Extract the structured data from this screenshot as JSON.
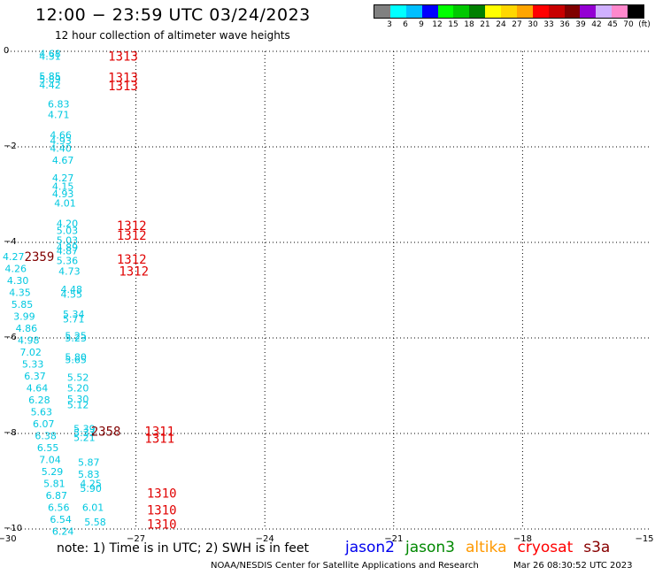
{
  "header": {
    "title": "12:00 − 23:59 UTC 03/24/2023",
    "subtitle": "12 hour collection of altimeter wave heights"
  },
  "legend": {
    "colors": [
      "#808080",
      "#00ffff",
      "#00bfff",
      "#0000ff",
      "#00ff00",
      "#00c800",
      "#008000",
      "#ffff00",
      "#ffd700",
      "#ffa500",
      "#ff0000",
      "#c80000",
      "#800000",
      "#9400d3",
      "#d0b0ff",
      "#ff88cc",
      "#000000"
    ],
    "labels": [
      "3",
      "6",
      "9",
      "12",
      "15",
      "18",
      "21",
      "24",
      "27",
      "30",
      "33",
      "36",
      "39",
      "42",
      "45",
      "70",
      "(ft)"
    ]
  },
  "axes": {
    "x_ticks": [
      "−30",
      "−27",
      "−24",
      "−21",
      "−18",
      "−15"
    ],
    "y_ticks": [
      "0",
      "−2",
      "−4",
      "−6",
      "−8",
      "−10"
    ]
  },
  "wave_heights": [
    {
      "lon": -29.0,
      "lat": -0.05,
      "v": "4.68"
    },
    {
      "lon": -29.0,
      "lat": -0.1,
      "v": "4.31"
    },
    {
      "lon": -29.0,
      "lat": -0.52,
      "v": "5.85"
    },
    {
      "lon": -29.0,
      "lat": -0.58,
      "v": "5.89"
    },
    {
      "lon": -29.0,
      "lat": -0.7,
      "v": "4.42"
    },
    {
      "lon": -28.8,
      "lat": -1.1,
      "v": "6.83"
    },
    {
      "lon": -28.8,
      "lat": -1.32,
      "v": "4.71"
    },
    {
      "lon": -28.75,
      "lat": -1.75,
      "v": "4.66"
    },
    {
      "lon": -28.75,
      "lat": -1.87,
      "v": "4.93"
    },
    {
      "lon": -28.75,
      "lat": -2.03,
      "v": "4.40"
    },
    {
      "lon": -28.7,
      "lat": -2.28,
      "v": "4.67"
    },
    {
      "lon": -28.7,
      "lat": -2.65,
      "v": "4.27"
    },
    {
      "lon": -28.7,
      "lat": -2.82,
      "v": "4.15"
    },
    {
      "lon": -28.7,
      "lat": -2.98,
      "v": "4.93"
    },
    {
      "lon": -28.65,
      "lat": -3.18,
      "v": "4.01"
    },
    {
      "lon": -28.6,
      "lat": -3.6,
      "v": "4.20"
    },
    {
      "lon": -28.6,
      "lat": -3.75,
      "v": "5.03"
    },
    {
      "lon": -28.6,
      "lat": -3.95,
      "v": "5.03"
    },
    {
      "lon": -28.6,
      "lat": -4.1,
      "v": "4.89"
    },
    {
      "lon": -28.6,
      "lat": -4.18,
      "v": "4.87"
    },
    {
      "lon": -28.6,
      "lat": -4.38,
      "v": "5.36"
    },
    {
      "lon": -28.55,
      "lat": -4.6,
      "v": "4.73"
    },
    {
      "lon": -28.5,
      "lat": -4.98,
      "v": "4.48"
    },
    {
      "lon": -28.5,
      "lat": -5.08,
      "v": "4.55"
    },
    {
      "lon": -28.45,
      "lat": -5.5,
      "v": "5.34"
    },
    {
      "lon": -28.45,
      "lat": -5.6,
      "v": "5.71"
    },
    {
      "lon": -28.4,
      "lat": -5.95,
      "v": "5.25"
    },
    {
      "lon": -28.4,
      "lat": -6.0,
      "v": "5.23"
    },
    {
      "lon": -28.4,
      "lat": -6.4,
      "v": "5.80"
    },
    {
      "lon": -28.4,
      "lat": -6.45,
      "v": "5.65"
    },
    {
      "lon": -28.35,
      "lat": -6.82,
      "v": "5.52"
    },
    {
      "lon": -28.35,
      "lat": -7.05,
      "v": "5.20"
    },
    {
      "lon": -28.35,
      "lat": -7.28,
      "v": "5.30"
    },
    {
      "lon": -28.35,
      "lat": -7.4,
      "v": "5.12"
    },
    {
      "lon": -28.2,
      "lat": -7.9,
      "v": "5.39"
    },
    {
      "lon": -28.2,
      "lat": -7.98,
      "v": "5.33"
    },
    {
      "lon": -28.2,
      "lat": -8.08,
      "v": "5.21"
    },
    {
      "lon": -28.1,
      "lat": -8.6,
      "v": "5.87"
    },
    {
      "lon": -28.1,
      "lat": -8.85,
      "v": "5.83"
    },
    {
      "lon": -28.05,
      "lat": -9.05,
      "v": "4.25"
    },
    {
      "lon": -28.05,
      "lat": -9.15,
      "v": "5.90"
    },
    {
      "lon": -28.0,
      "lat": -9.55,
      "v": "6.01"
    },
    {
      "lon": -27.95,
      "lat": -9.85,
      "v": "5.58"
    },
    {
      "lon": -29.85,
      "lat": -4.3,
      "v": "4.27"
    },
    {
      "lon": -29.8,
      "lat": -4.55,
      "v": "4.26"
    },
    {
      "lon": -29.75,
      "lat": -4.8,
      "v": "4.30"
    },
    {
      "lon": -29.7,
      "lat": -5.05,
      "v": "4.35"
    },
    {
      "lon": -29.65,
      "lat": -5.3,
      "v": "5.85"
    },
    {
      "lon": -29.6,
      "lat": -5.55,
      "v": "3.99"
    },
    {
      "lon": -29.55,
      "lat": -5.8,
      "v": "4.86"
    },
    {
      "lon": -29.5,
      "lat": -6.05,
      "v": "4.98"
    },
    {
      "lon": -29.45,
      "lat": -6.3,
      "v": "7.02"
    },
    {
      "lon": -29.4,
      "lat": -6.55,
      "v": "5.33"
    },
    {
      "lon": -29.35,
      "lat": -6.8,
      "v": "6.37"
    },
    {
      "lon": -29.3,
      "lat": -7.05,
      "v": "4.64"
    },
    {
      "lon": -29.25,
      "lat": -7.3,
      "v": "6.28"
    },
    {
      "lon": -29.2,
      "lat": -7.55,
      "v": "5.63"
    },
    {
      "lon": -29.15,
      "lat": -7.8,
      "v": "6.07"
    },
    {
      "lon": -29.1,
      "lat": -8.05,
      "v": "6.38"
    },
    {
      "lon": -29.05,
      "lat": -8.3,
      "v": "6.55"
    },
    {
      "lon": -29.0,
      "lat": -8.55,
      "v": "7.04"
    },
    {
      "lon": -28.95,
      "lat": -8.8,
      "v": "5.29"
    },
    {
      "lon": -28.9,
      "lat": -9.05,
      "v": "5.81"
    },
    {
      "lon": -28.85,
      "lat": -9.3,
      "v": "6.87"
    },
    {
      "lon": -28.8,
      "lat": -9.55,
      "v": "6.56"
    },
    {
      "lon": -28.75,
      "lat": -9.8,
      "v": "6.54"
    },
    {
      "lon": -28.7,
      "lat": -10.05,
      "v": "6.24"
    }
  ],
  "time_labels": [
    {
      "lon": -27.3,
      "lat": -0.1,
      "t": "1313",
      "color": "#e00000"
    },
    {
      "lon": -27.3,
      "lat": -0.55,
      "t": "1313",
      "color": "#e00000"
    },
    {
      "lon": -27.3,
      "lat": -0.72,
      "t": "1313",
      "color": "#e00000"
    },
    {
      "lon": -27.1,
      "lat": -3.65,
      "t": "1312",
      "color": "#e00000"
    },
    {
      "lon": -27.1,
      "lat": -3.85,
      "t": "1312",
      "color": "#e00000"
    },
    {
      "lon": -27.1,
      "lat": -4.35,
      "t": "1312",
      "color": "#e00000"
    },
    {
      "lon": -27.05,
      "lat": -4.6,
      "t": "1312",
      "color": "#e00000"
    },
    {
      "lon": -26.45,
      "lat": -7.95,
      "t": "1311",
      "color": "#e00000"
    },
    {
      "lon": -26.45,
      "lat": -8.1,
      "t": "1311",
      "color": "#e00000"
    },
    {
      "lon": -26.4,
      "lat": -9.25,
      "t": "1310",
      "color": "#e00000"
    },
    {
      "lon": -26.4,
      "lat": -9.6,
      "t": "1310",
      "color": "#e00000"
    },
    {
      "lon": -26.4,
      "lat": -9.9,
      "t": "1310",
      "color": "#e00000"
    },
    {
      "lon": -29.25,
      "lat": -4.3,
      "t": "2359",
      "color": "#800000"
    },
    {
      "lon": -27.7,
      "lat": -7.95,
      "t": "2358",
      "color": "#800000"
    }
  ],
  "footer": {
    "note": "note: 1) Time is in UTC; 2) SWH is in feet",
    "satellites": [
      {
        "name": "jason2",
        "color": "#0000ee"
      },
      {
        "name": "jason3",
        "color": "#008800"
      },
      {
        "name": "altika",
        "color": "#ff9900"
      },
      {
        "name": "cryosat",
        "color": "#ff0000"
      },
      {
        "name": "s3a",
        "color": "#880000"
      }
    ],
    "credit": "NOAA/NESDIS Center for Satellite Applications and Research",
    "generated": "Mar 26 08:30:52 UTC 2023"
  }
}
